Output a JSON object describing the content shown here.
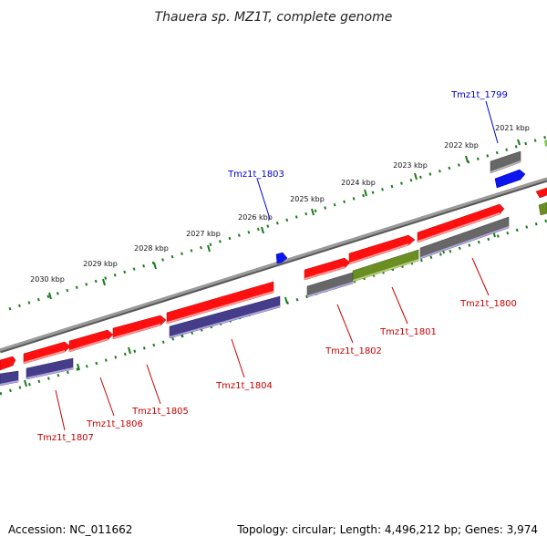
{
  "title": "Thauera sp. MZ1T, complete genome",
  "footer": {
    "accession": "Accession: NC_011662",
    "topology": "Topology: circular; Length: 4,496,212 bp; Genes: 3,974"
  },
  "colors": {
    "forward_gene": "#ff1010",
    "forward_gene_light": "#ff9a9a",
    "reverse_gene": "#463d8a",
    "reverse_gene_light": "#b0a8e0",
    "other_gene": "#676767",
    "other_gene_light": "#b8b8b8",
    "olive_gene": "#6b8e23",
    "olive_gene_light": "#b8d080",
    "blue_feature": "#0b16ee",
    "backbone": "#8a8a8a",
    "ticks": "#1a7a1a",
    "label_red": "#cc0000",
    "label_blue": "#0000cc"
  },
  "kbp_labels": [
    "2021 kbp",
    "2022 kbp",
    "2023 kbp",
    "2024 kbp",
    "2025 kbp",
    "2026 kbp",
    "2027 kbp",
    "2028 kbp",
    "2029 kbp",
    "2030 kbp"
  ],
  "gene_labels": [
    {
      "id": "tmz1t_1799",
      "text": "Tmz1t_1799",
      "strand": "forward"
    },
    {
      "id": "tmz1t_1800",
      "text": "Tmz1t_1800",
      "strand": "reverse"
    },
    {
      "id": "tmz1t_1801",
      "text": "Tmz1t_1801",
      "strand": "reverse"
    },
    {
      "id": "tmz1t_1802",
      "text": "Tmz1t_1802",
      "strand": "reverse"
    },
    {
      "id": "tmz1t_1803",
      "text": "Tmz1t_1803",
      "strand": "forward"
    },
    {
      "id": "tmz1t_1804",
      "text": "Tmz1t_1804",
      "strand": "reverse"
    },
    {
      "id": "tmz1t_1805",
      "text": "Tmz1t_1805",
      "strand": "reverse"
    },
    {
      "id": "tmz1t_1806",
      "text": "Tmz1t_1806",
      "strand": "reverse"
    },
    {
      "id": "tmz1t_1807",
      "text": "Tmz1t_1807",
      "strand": "reverse"
    }
  ]
}
